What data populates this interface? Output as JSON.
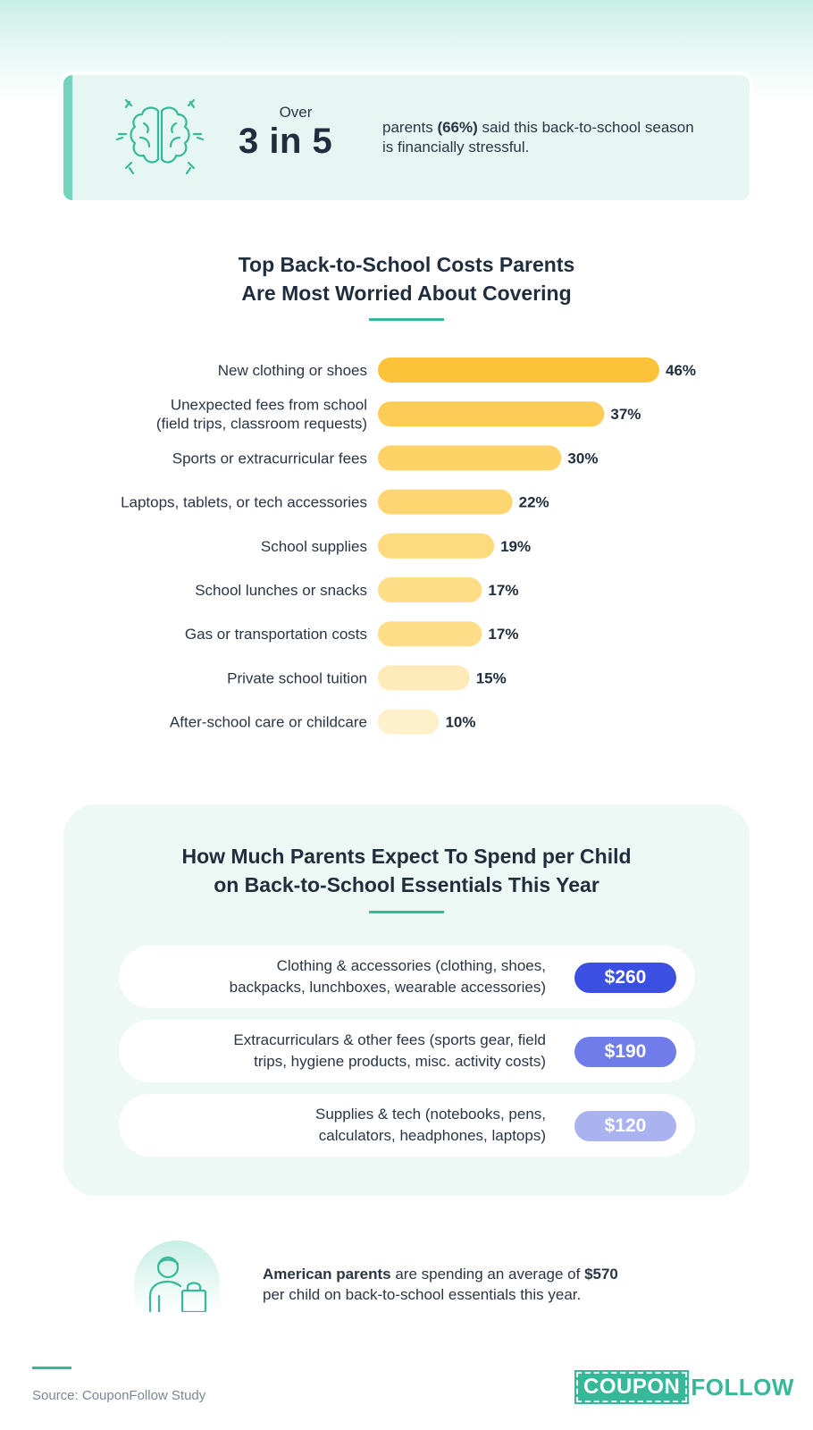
{
  "colors": {
    "accent": "#35b999",
    "bar_gradient": [
      "#fcc23a",
      "#fdcc57",
      "#fdd267",
      "#fdd672",
      "#fdda7d",
      "#fedd89",
      "#fedd89",
      "#feeab8",
      "#fef0cb"
    ],
    "badges": [
      "#3b4fe3",
      "#6f7ce9",
      "#aab2f0"
    ]
  },
  "stat": {
    "pre": "Over",
    "big": "3 in 5",
    "text_bold_prefix": "parents ",
    "text_bold": "(66%)",
    "text_rest": " said this back-to-school season is financially stressful.",
    "icon": "brain-stress-icon"
  },
  "costs_section": {
    "title_line1": "Top Back-to-School Costs Parents",
    "title_line2": "Are Most Worried About Covering"
  },
  "chart_data": {
    "type": "bar",
    "orientation": "horizontal",
    "categories": [
      [
        "New clothing or shoes"
      ],
      [
        "Unexpected fees from school",
        "(field trips, classroom requests)"
      ],
      [
        "Sports or extracurricular fees"
      ],
      [
        "Laptops, tablets, or tech accessories"
      ],
      [
        "School supplies"
      ],
      [
        "School lunches or snacks"
      ],
      [
        "Gas or transportation costs"
      ],
      [
        "Private school tuition"
      ],
      [
        "After-school care or childcare"
      ]
    ],
    "values": [
      46,
      37,
      30,
      22,
      19,
      17,
      17,
      15,
      10
    ],
    "value_labels": [
      "46%",
      "37%",
      "30%",
      "22%",
      "19%",
      "17%",
      "17%",
      "15%",
      "10%"
    ],
    "unit": "%",
    "xlim": [
      0,
      46
    ],
    "grid": false,
    "legend": "none"
  },
  "spend_section": {
    "title_line1": "How Much Parents Expect To Spend per Child",
    "title_line2": "on Back-to-School Essentials This Year",
    "items": [
      {
        "line1": "Clothing & accessories (clothing, shoes,",
        "line2": "backpacks, lunchboxes, wearable accessories)",
        "amount": "$260"
      },
      {
        "line1": "Extracurriculars & other fees (sports gear, field",
        "line2": "trips, hygiene products, misc. activity costs)",
        "amount": "$190"
      },
      {
        "line1": "Supplies & tech (notebooks, pens,",
        "line2": "calculators, headphones, laptops)",
        "amount": "$120"
      }
    ]
  },
  "average": {
    "bold1": "American parents",
    "mid": " are spending an average of ",
    "bold2": "$570",
    "line2": "per child on back-to-school essentials this year.",
    "icon": "parent-shopping-bag-icon"
  },
  "footer": {
    "source": "Source: CouponFollow Study",
    "logo_part1": "COUPON",
    "logo_part2": "FOLLOW"
  }
}
